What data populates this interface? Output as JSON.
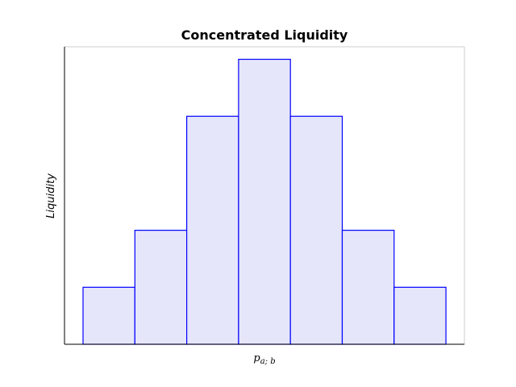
{
  "chart_data": {
    "type": "bar",
    "title": "Concentrated Liquidity",
    "xlabel_main": "p",
    "xlabel_sub": "a; b",
    "ylabel": "Liquidity",
    "bars": [
      {
        "value": 1
      },
      {
        "value": 2
      },
      {
        "value": 4
      },
      {
        "value": 5
      },
      {
        "value": 4
      },
      {
        "value": 2
      },
      {
        "value": 1
      }
    ],
    "ylim": [
      0,
      5.22
    ],
    "grid": false,
    "legend": "none",
    "colors": {
      "bar_fill": "#e6e6fa",
      "bar_edge": "#0000ff",
      "axis": "#000000",
      "frame": "#cccccc"
    }
  }
}
